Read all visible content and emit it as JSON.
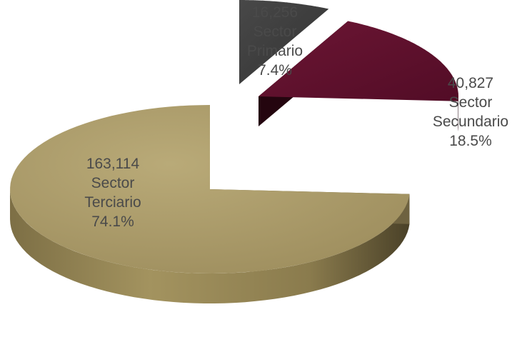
{
  "chart_data": {
    "type": "pie",
    "title": "",
    "style": "3d-exploded",
    "legend": "none",
    "slices": [
      {
        "value": "16,256",
        "name": "Sector Primario",
        "name_lines": [
          "Sector",
          "Primario"
        ],
        "percent": "7.4%",
        "color": "#3a3a3a"
      },
      {
        "value": "40,827",
        "name": "Sector Secundario",
        "name_lines": [
          "Sector",
          "Secundario"
        ],
        "percent": "18.5%",
        "color": "#5e102c"
      },
      {
        "value": "163,114",
        "name": "Sector Terciario",
        "name_lines": [
          "Sector",
          "Terciario"
        ],
        "percent": "74.1%",
        "color": "#ad9e6c"
      }
    ]
  }
}
